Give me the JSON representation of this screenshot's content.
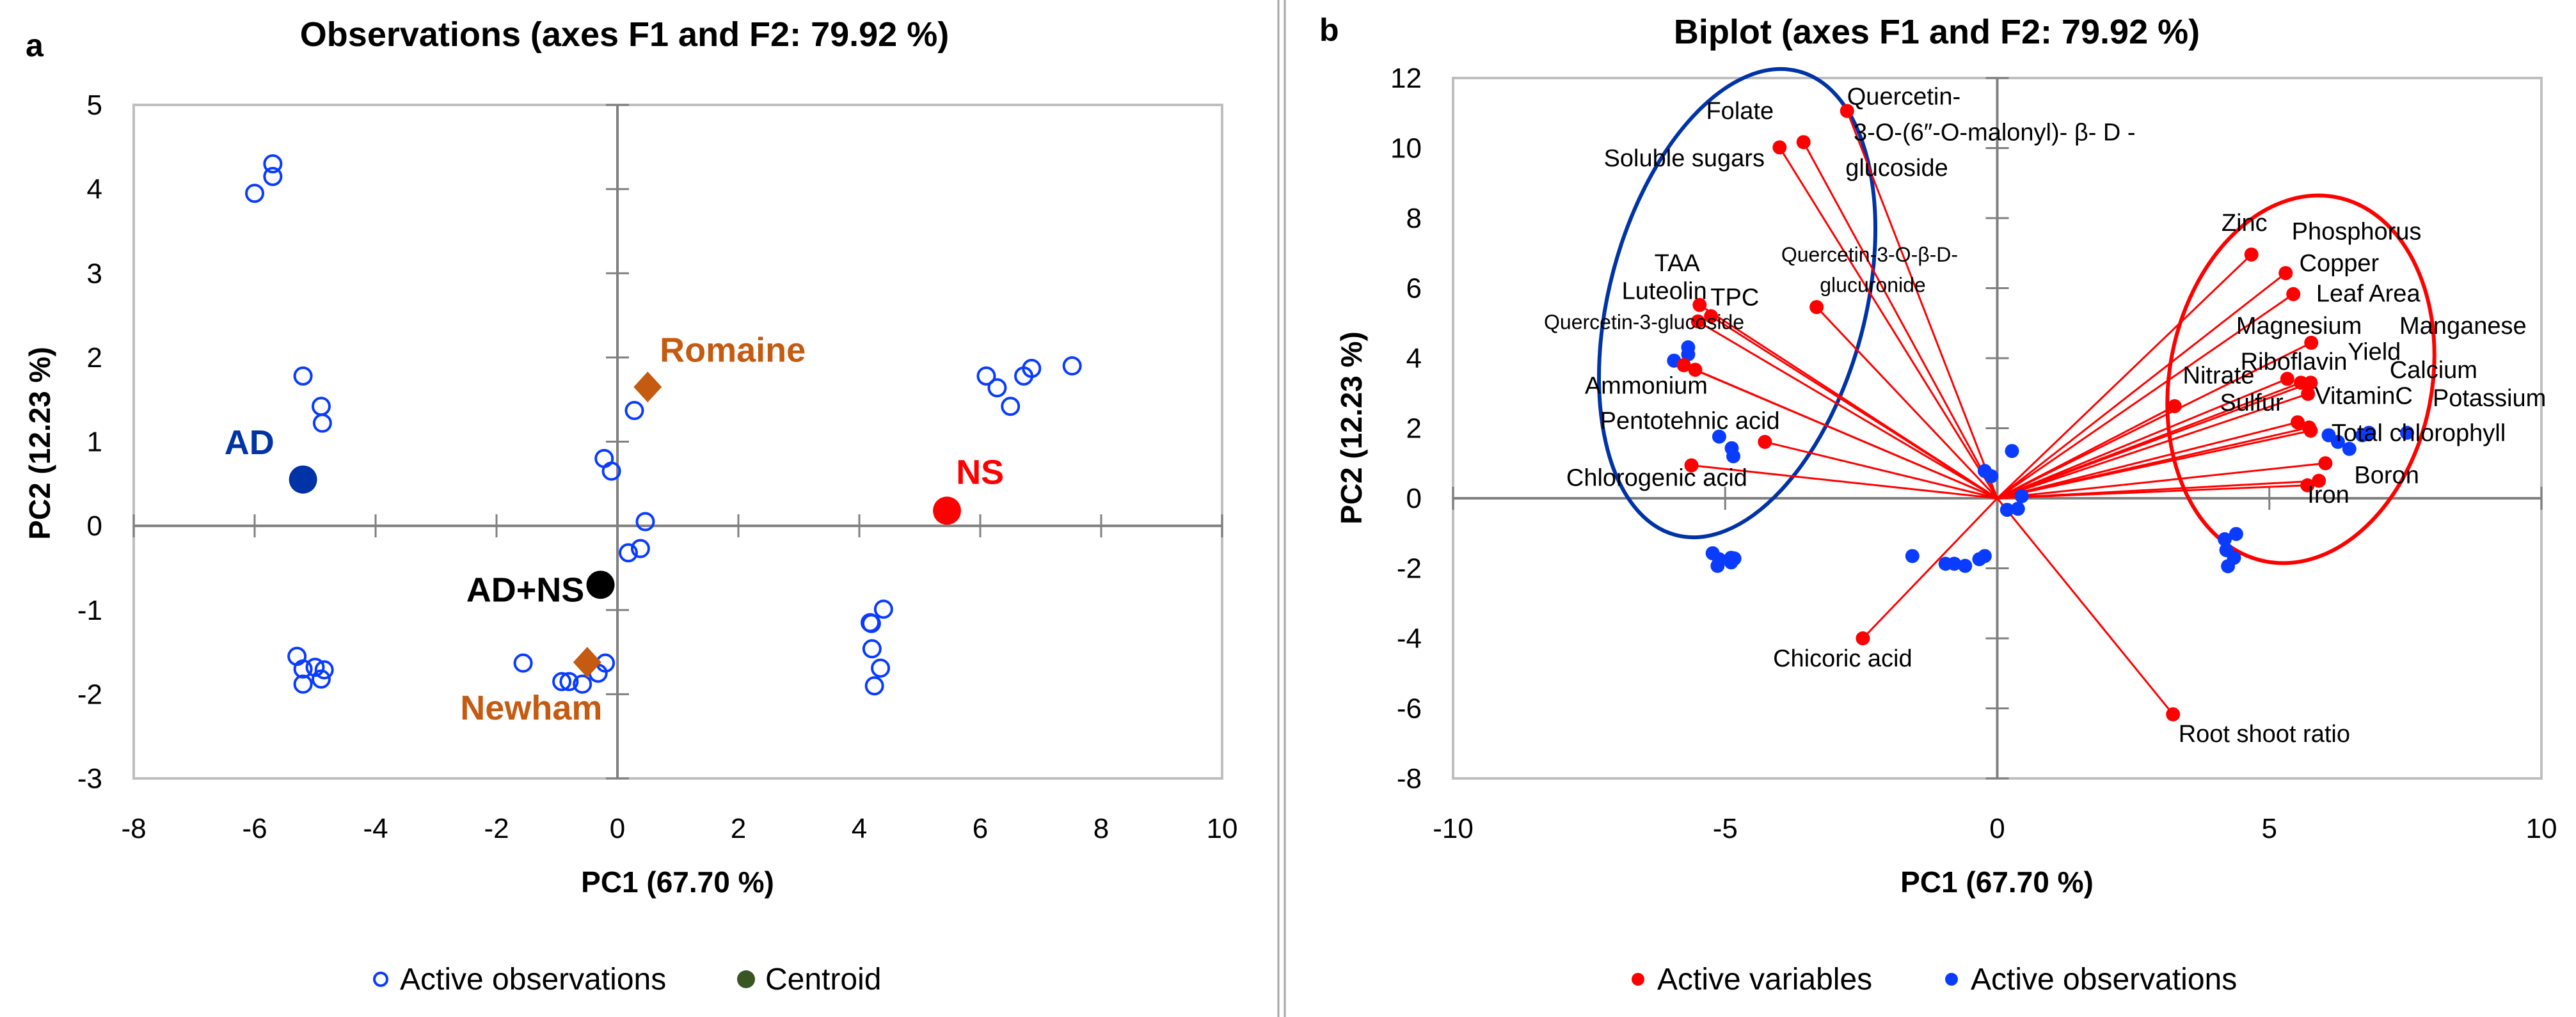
{
  "chart_data": [
    {
      "type": "scatter",
      "panel_label": "a",
      "title": "Observations (axes F1 and F2: 79.92 %)",
      "xlabel": "PC1 (67.70 %)",
      "ylabel": "PC2 (12.23 %)",
      "xlim": [
        -8,
        10
      ],
      "ylim": [
        -3,
        5
      ],
      "xticks": [
        -8,
        -6,
        -4,
        -2,
        0,
        2,
        4,
        6,
        8,
        10
      ],
      "yticks": [
        -3,
        -2,
        -1,
        0,
        1,
        2,
        3,
        4,
        5
      ],
      "observations": [
        [
          -5.7,
          4.3
        ],
        [
          -5.7,
          4.15
        ],
        [
          -6.0,
          3.95
        ],
        [
          -5.2,
          1.78
        ],
        [
          -4.9,
          1.42
        ],
        [
          -4.88,
          1.22
        ],
        [
          -0.22,
          0.8
        ],
        [
          -0.1,
          0.65
        ],
        [
          0.28,
          1.37
        ],
        [
          0.46,
          0.05
        ],
        [
          0.38,
          -0.27
        ],
        [
          0.18,
          -0.32
        ],
        [
          -5.3,
          -1.55
        ],
        [
          -5.2,
          -1.7
        ],
        [
          -5.0,
          -1.68
        ],
        [
          -4.85,
          -1.71
        ],
        [
          -4.9,
          -1.82
        ],
        [
          -5.2,
          -1.88
        ],
        [
          -1.56,
          -1.63
        ],
        [
          -0.92,
          -1.85
        ],
        [
          -0.8,
          -1.85
        ],
        [
          -0.58,
          -1.88
        ],
        [
          -0.32,
          -1.75
        ],
        [
          -0.2,
          -1.63
        ],
        [
          4.18,
          -1.15
        ],
        [
          4.2,
          -1.16
        ],
        [
          4.4,
          -0.99
        ],
        [
          4.21,
          -1.46
        ],
        [
          4.35,
          -1.69
        ],
        [
          4.25,
          -1.9
        ],
        [
          6.1,
          1.78
        ],
        [
          6.28,
          1.64
        ],
        [
          6.5,
          1.42
        ],
        [
          6.72,
          1.78
        ],
        [
          6.85,
          1.87
        ],
        [
          7.52,
          1.9
        ]
      ],
      "centroids": [
        {
          "name": "AD",
          "x": -5.2,
          "y": 0.55,
          "shape": "circle",
          "color": "#0033a6",
          "label_x": -6.5,
          "label_y": 0.85
        },
        {
          "name": "NS",
          "x": 5.45,
          "y": 0.18,
          "shape": "circle",
          "color": "#ff0000",
          "label_x": 5.6,
          "label_y": 0.5
        },
        {
          "name": "AD+NS",
          "x": -0.28,
          "y": -0.7,
          "shape": "circle",
          "color": "#000000",
          "label_x": -2.5,
          "label_y": -0.9
        },
        {
          "name": "Romaine",
          "x": 0.5,
          "y": 1.65,
          "shape": "diamond",
          "color": "#c55a11",
          "label_x": 0.7,
          "label_y": 1.95
        },
        {
          "name": "Newham",
          "x": -0.5,
          "y": -1.62,
          "shape": "diamond",
          "color": "#c55a11",
          "label_x": -2.6,
          "label_y": -2.3
        }
      ],
      "colors": {
        "observations": "#0a3cff",
        "centroid_legend": "#375623",
        "frame": "#bfbfbf",
        "axis": "#808080"
      },
      "legend": [
        {
          "label": "Active observations",
          "marker": "open-circle"
        },
        {
          "label": "Centroid",
          "marker": "filled-circle"
        }
      ],
      "legend_position": "bottom"
    },
    {
      "type": "scatter",
      "panel_label": "b",
      "title": "Biplot (axes F1 and F2: 79.92 %)",
      "xlabel": "PC1 (67.70 %)",
      "ylabel": "PC2 (12.23 %)",
      "xlim": [
        -10,
        10
      ],
      "ylim": [
        -8,
        12
      ],
      "xticks": [
        -10,
        -5,
        0,
        5,
        10
      ],
      "yticks": [
        -8,
        -6,
        -4,
        -2,
        0,
        2,
        4,
        6,
        8,
        10,
        12
      ],
      "variables": [
        [
          -2.76,
          11.06
        ],
        [
          -3.56,
          10.17
        ],
        [
          -4.0,
          10.02
        ],
        [
          -3.32,
          5.46
        ],
        [
          -5.47,
          5.52
        ],
        [
          -5.26,
          5.2
        ],
        [
          -5.5,
          5.05
        ],
        [
          -5.76,
          3.8
        ],
        [
          -5.55,
          3.67
        ],
        [
          -4.27,
          1.61
        ],
        [
          -5.62,
          0.94
        ],
        [
          -2.47,
          -4.0
        ],
        [
          3.23,
          -6.17
        ],
        [
          4.67,
          6.96
        ],
        [
          5.3,
          6.43
        ],
        [
          5.44,
          5.83
        ],
        [
          5.77,
          4.44
        ],
        [
          5.33,
          3.41
        ],
        [
          5.58,
          3.3
        ],
        [
          5.76,
          3.3
        ],
        [
          5.71,
          2.98
        ],
        [
          3.26,
          2.63
        ],
        [
          5.52,
          2.17
        ],
        [
          5.73,
          2.02
        ],
        [
          5.76,
          1.93
        ],
        [
          6.03,
          1.0
        ],
        [
          5.91,
          0.5
        ],
        [
          5.7,
          0.37
        ]
      ],
      "labels": [
        {
          "text": "Folate",
          "x": -5.35,
          "y": 11.07
        },
        {
          "text": "Soluble sugars",
          "x": -7.23,
          "y": 9.72
        },
        {
          "text": "Quercetin-",
          "x": -2.76,
          "y": 11.48
        },
        {
          "text": "3-O-(6″-O-malonyl)- β- D -",
          "x": -2.64,
          "y": 10.46
        },
        {
          "text": "glucoside",
          "x": -2.79,
          "y": 9.44
        },
        {
          "text": "Quercetin-3-O-β-D-",
          "x": -3.97,
          "y": 7.0,
          "small": true
        },
        {
          "text": "glucuronide",
          "x": -3.26,
          "y": 6.13,
          "small": true
        },
        {
          "text": "TAA",
          "x": -6.3,
          "y": 6.72
        },
        {
          "text": "Luteolin",
          "x": -6.9,
          "y": 5.93
        },
        {
          "text": "TPC",
          "x": -5.27,
          "y": 5.74
        },
        {
          "text": "Quercetin-3-glucoside",
          "x": -8.33,
          "y": 5.07,
          "small": true
        },
        {
          "text": "Ammonium",
          "x": -7.58,
          "y": 3.22
        },
        {
          "text": "Pentotehnic acid",
          "x": -7.3,
          "y": 2.22
        },
        {
          "text": "Chlorogenic acid",
          "x": -7.92,
          "y": 0.59
        },
        {
          "text": "Chicoric acid",
          "x": -4.12,
          "y": -4.57
        },
        {
          "text": "Root shoot ratio",
          "x": 3.33,
          "y": -6.72
        },
        {
          "text": "Zinc",
          "x": 4.12,
          "y": 7.87
        },
        {
          "text": "Phosphorus",
          "x": 5.41,
          "y": 7.63
        },
        {
          "text": "Copper",
          "x": 5.55,
          "y": 6.72
        },
        {
          "text": "Leaf Area",
          "x": 5.86,
          "y": 5.85
        },
        {
          "text": "Magnesium",
          "x": 4.39,
          "y": 4.93
        },
        {
          "text": "Manganese",
          "x": 7.39,
          "y": 4.93
        },
        {
          "text": "Yield",
          "x": 6.44,
          "y": 4.19
        },
        {
          "text": "Riboflavin",
          "x": 4.47,
          "y": 3.91
        },
        {
          "text": "Calcium",
          "x": 7.21,
          "y": 3.67
        },
        {
          "text": "Nitrate",
          "x": 3.41,
          "y": 3.52
        },
        {
          "text": "VitaminC",
          "x": 5.83,
          "y": 2.93
        },
        {
          "text": "Potassium",
          "x": 8.0,
          "y": 2.87
        },
        {
          "text": "Sulfur",
          "x": 4.09,
          "y": 2.74
        },
        {
          "text": "Total chlorophyll",
          "x": 6.14,
          "y": 1.87
        },
        {
          "text": "Boron",
          "x": 6.56,
          "y": 0.67
        },
        {
          "text": "Iron",
          "x": 5.7,
          "y": 0.11
        }
      ],
      "observations": [
        [
          -5.68,
          4.31
        ],
        [
          -5.68,
          4.11
        ],
        [
          -5.94,
          3.93
        ],
        [
          -5.11,
          1.76
        ],
        [
          -4.88,
          1.43
        ],
        [
          -4.85,
          1.2
        ],
        [
          -0.23,
          0.78
        ],
        [
          -0.11,
          0.63
        ],
        [
          0.27,
          1.35
        ],
        [
          0.45,
          0.06
        ],
        [
          0.38,
          -0.3
        ],
        [
          0.18,
          -0.33
        ],
        [
          -5.23,
          -1.57
        ],
        [
          -5.11,
          -1.74
        ],
        [
          -4.89,
          -1.7
        ],
        [
          -4.83,
          -1.72
        ],
        [
          -4.89,
          -1.83
        ],
        [
          -5.14,
          -1.93
        ],
        [
          -1.56,
          -1.65
        ],
        [
          -0.95,
          -1.87
        ],
        [
          -0.79,
          -1.87
        ],
        [
          -0.59,
          -1.93
        ],
        [
          -0.33,
          -1.74
        ],
        [
          -0.23,
          -1.65
        ],
        [
          4.18,
          -1.17
        ],
        [
          4.39,
          -1.02
        ],
        [
          4.21,
          -1.48
        ],
        [
          4.35,
          -1.7
        ],
        [
          4.24,
          -1.94
        ],
        [
          6.09,
          1.8
        ],
        [
          6.26,
          1.61
        ],
        [
          6.47,
          1.41
        ],
        [
          6.71,
          1.8
        ],
        [
          6.83,
          1.87
        ],
        [
          7.53,
          1.87
        ]
      ],
      "colors": {
        "variables": "#ff0000",
        "observations": "#0a3cff",
        "left_group": "#0033a6",
        "right_group": "#ff0000"
      },
      "legend": [
        {
          "label": "Active variables",
          "marker": "red-dot"
        },
        {
          "label": "Active observations",
          "marker": "blue-dot"
        }
      ],
      "legend_position": "bottom"
    }
  ]
}
